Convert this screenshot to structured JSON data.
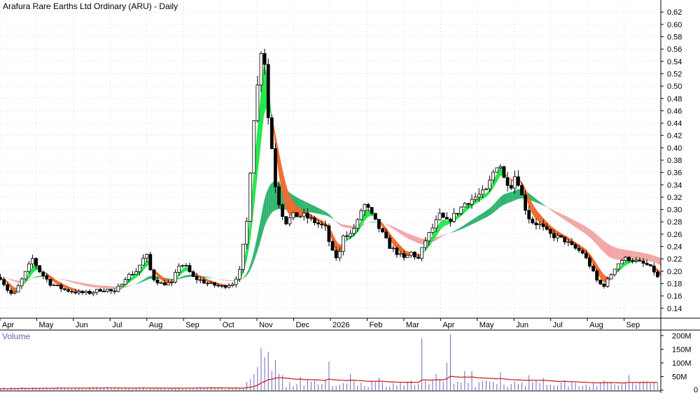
{
  "chart_data": {
    "type": "candlestick",
    "title": "Arafura Rare Earths Ltd Ordinary (ARU) - Daily",
    "price_axis": {
      "ylim": [
        0.125,
        0.635
      ],
      "ticks": [
        "0.14",
        "0.16",
        "0.18",
        "0.20",
        "0.22",
        "0.24",
        "0.26",
        "0.28",
        "0.30",
        "0.32",
        "0.34",
        "0.36",
        "0.38",
        "0.40",
        "0.42",
        "0.44",
        "0.46",
        "0.48",
        "0.50",
        "0.52",
        "0.54",
        "0.56",
        "0.58",
        "0.60",
        "0.62"
      ]
    },
    "time_axis": {
      "months": [
        "Apr",
        "May",
        "Jun",
        "Jul",
        "Aug",
        "Sep",
        "Oct",
        "Nov",
        "Dec",
        "2026",
        "Feb",
        "Mar",
        "Apr",
        "May",
        "Jun",
        "Jul",
        "Aug",
        "Sep"
      ]
    },
    "price_keypoints": [
      [
        0,
        0.19
      ],
      [
        10,
        0.17
      ],
      [
        18,
        0.16
      ],
      [
        25,
        0.175
      ],
      [
        45,
        0.22
      ],
      [
        55,
        0.2
      ],
      [
        70,
        0.18
      ],
      [
        90,
        0.17
      ],
      [
        110,
        0.165
      ],
      [
        125,
        0.165
      ],
      [
        140,
        0.17
      ],
      [
        150,
        0.17
      ],
      [
        160,
        0.165
      ],
      [
        175,
        0.19
      ],
      [
        190,
        0.2
      ],
      [
        200,
        0.22
      ],
      [
        206,
        0.225
      ],
      [
        212,
        0.19
      ],
      [
        225,
        0.18
      ],
      [
        240,
        0.18
      ],
      [
        250,
        0.21
      ],
      [
        258,
        0.21
      ],
      [
        270,
        0.19
      ],
      [
        290,
        0.18
      ],
      [
        310,
        0.175
      ],
      [
        325,
        0.18
      ],
      [
        335,
        0.2
      ],
      [
        345,
        0.28
      ],
      [
        355,
        0.45
      ],
      [
        362,
        0.52
      ],
      [
        368,
        0.6
      ],
      [
        372,
        0.48
      ],
      [
        380,
        0.4
      ],
      [
        385,
        0.34
      ],
      [
        392,
        0.3
      ],
      [
        400,
        0.28
      ],
      [
        410,
        0.29
      ],
      [
        425,
        0.29
      ],
      [
        440,
        0.28
      ],
      [
        455,
        0.27
      ],
      [
        462,
        0.24
      ],
      [
        468,
        0.22
      ],
      [
        475,
        0.23
      ],
      [
        480,
        0.26
      ],
      [
        490,
        0.26
      ],
      [
        500,
        0.28
      ],
      [
        508,
        0.31
      ],
      [
        515,
        0.3
      ],
      [
        525,
        0.28
      ],
      [
        535,
        0.26
      ],
      [
        545,
        0.24
      ],
      [
        555,
        0.23
      ],
      [
        565,
        0.22
      ],
      [
        575,
        0.23
      ],
      [
        585,
        0.22
      ],
      [
        595,
        0.25
      ],
      [
        605,
        0.27
      ],
      [
        615,
        0.29
      ],
      [
        625,
        0.28
      ],
      [
        635,
        0.29
      ],
      [
        650,
        0.31
      ],
      [
        665,
        0.32
      ],
      [
        680,
        0.33
      ],
      [
        690,
        0.36
      ],
      [
        698,
        0.38
      ],
      [
        705,
        0.35
      ],
      [
        715,
        0.34
      ],
      [
        722,
        0.36
      ],
      [
        728,
        0.33
      ],
      [
        733,
        0.31
      ],
      [
        738,
        0.29
      ],
      [
        745,
        0.28
      ],
      [
        755,
        0.275
      ],
      [
        768,
        0.26
      ],
      [
        780,
        0.255
      ],
      [
        790,
        0.25
      ],
      [
        800,
        0.24
      ],
      [
        815,
        0.23
      ],
      [
        825,
        0.21
      ],
      [
        835,
        0.185
      ],
      [
        843,
        0.175
      ],
      [
        850,
        0.185
      ],
      [
        862,
        0.21
      ],
      [
        872,
        0.22
      ],
      [
        882,
        0.22
      ],
      [
        892,
        0.215
      ],
      [
        905,
        0.21
      ],
      [
        915,
        0.2
      ],
      [
        922,
        0.185
      ]
    ],
    "volume_axis": {
      "ylim": [
        0,
        215
      ],
      "ticks": [
        "0",
        "50M",
        "100M",
        "150M",
        "200M"
      ],
      "title": "Volume"
    },
    "volume_spikes": [
      [
        345,
        30
      ],
      [
        350,
        40
      ],
      [
        355,
        60
      ],
      [
        360,
        85
      ],
      [
        364,
        55
      ],
      [
        367,
        155
      ],
      [
        370,
        120
      ],
      [
        373,
        90
      ],
      [
        376,
        140
      ],
      [
        380,
        70
      ],
      [
        384,
        110
      ],
      [
        388,
        60
      ],
      [
        395,
        55
      ],
      [
        420,
        48
      ],
      [
        460,
        105
      ],
      [
        490,
        60
      ],
      [
        530,
        45
      ],
      [
        590,
        190
      ],
      [
        610,
        60
      ],
      [
        625,
        100
      ],
      [
        630,
        205
      ],
      [
        650,
        70
      ],
      [
        660,
        70
      ],
      [
        700,
        65
      ],
      [
        740,
        55
      ],
      [
        760,
        45
      ],
      [
        880,
        55
      ]
    ],
    "colors": {
      "candle": "#000000",
      "ema_fast_up": "#22e84a",
      "ema_fast_down": "#f06a2e",
      "ema_slow_up": "#2fb46e",
      "ema_slow_down": "#f2a6a6",
      "volume_bar": "#7a74c6",
      "volume_avg": "#d02222",
      "grid": "#cfd8e6"
    }
  }
}
